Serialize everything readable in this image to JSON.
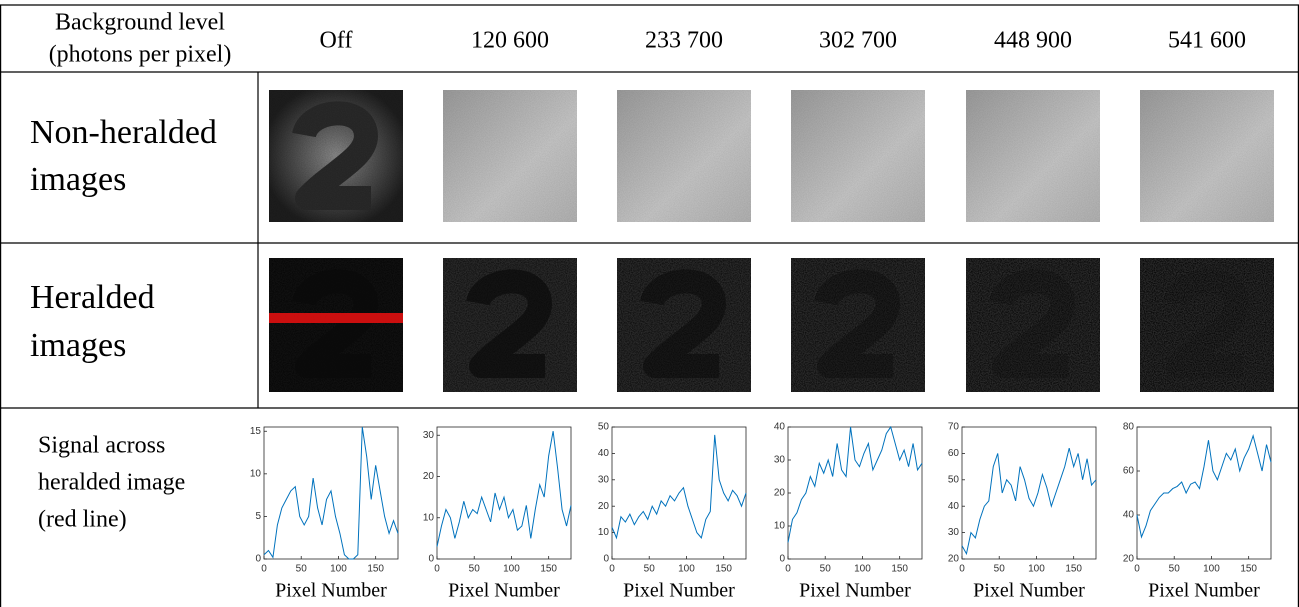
{
  "header": {
    "corner_label": [
      "Background level",
      "(photons per pixel)"
    ],
    "columns": [
      "Off",
      "120 600",
      "233 700",
      "302 700",
      "448 900",
      "541 600"
    ]
  },
  "rows": [
    {
      "label": [
        "Non-heralded",
        "images"
      ]
    },
    {
      "label": [
        "Heralded",
        "images"
      ]
    },
    {
      "label": [
        "Signal across",
        "heralded image",
        "(red line)"
      ]
    }
  ],
  "chart_data": [
    {
      "type": "line",
      "x_label": "Pixel Number",
      "color": "#0072bd",
      "xlim": [
        0,
        180
      ],
      "xticks": [
        0,
        50,
        100,
        150
      ],
      "ylim": [
        0,
        15.5
      ],
      "yticks": [
        0,
        5,
        10,
        15
      ],
      "x": [
        0,
        6,
        12,
        18,
        24,
        30,
        36,
        42,
        48,
        54,
        60,
        66,
        72,
        78,
        84,
        90,
        96,
        102,
        108,
        114,
        120,
        126,
        132,
        138,
        144,
        150,
        156,
        162,
        168,
        174,
        180
      ],
      "values": [
        0.5,
        1,
        0.2,
        4,
        6,
        7,
        8,
        8.5,
        5,
        4,
        5,
        9.5,
        6,
        4,
        7,
        8,
        5,
        3,
        0.5,
        0,
        0,
        0.5,
        15.5,
        12,
        7,
        11,
        8,
        5,
        3,
        4.5,
        3
      ]
    },
    {
      "type": "line",
      "x_label": "Pixel Number",
      "color": "#0072bd",
      "xlim": [
        0,
        180
      ],
      "xticks": [
        0,
        50,
        100,
        150
      ],
      "ylim": [
        0,
        32
      ],
      "yticks": [
        0,
        10,
        20,
        30
      ],
      "x": [
        0,
        6,
        12,
        18,
        24,
        30,
        36,
        42,
        48,
        54,
        60,
        66,
        72,
        78,
        84,
        90,
        96,
        102,
        108,
        114,
        120,
        126,
        132,
        138,
        144,
        150,
        156,
        162,
        168,
        174,
        180
      ],
      "values": [
        3,
        8,
        12,
        10,
        5,
        9,
        14,
        10,
        12,
        11,
        15,
        12,
        9,
        16,
        12,
        15,
        10,
        12,
        7,
        8,
        13,
        5,
        12,
        18,
        15,
        25,
        31,
        22,
        12,
        8,
        13
      ]
    },
    {
      "type": "line",
      "x_label": "Pixel Number",
      "color": "#0072bd",
      "xlim": [
        0,
        180
      ],
      "xticks": [
        0,
        50,
        100,
        150
      ],
      "ylim": [
        0,
        50
      ],
      "yticks": [
        0,
        10,
        20,
        30,
        40,
        50
      ],
      "x": [
        0,
        6,
        12,
        18,
        24,
        30,
        36,
        42,
        48,
        54,
        60,
        66,
        72,
        78,
        84,
        90,
        96,
        102,
        108,
        114,
        120,
        126,
        132,
        138,
        144,
        150,
        156,
        162,
        168,
        174,
        180
      ],
      "values": [
        12,
        8,
        16,
        14,
        17,
        13,
        16,
        18,
        15,
        20,
        17,
        22,
        20,
        24,
        22,
        25,
        27,
        20,
        15,
        10,
        8,
        15,
        18,
        47,
        30,
        25,
        22,
        26,
        24,
        20,
        25
      ]
    },
    {
      "type": "line",
      "x_label": "Pixel Number",
      "color": "#0072bd",
      "xlim": [
        0,
        180
      ],
      "xticks": [
        0,
        50,
        100,
        150
      ],
      "ylim": [
        0,
        40
      ],
      "yticks": [
        0,
        10,
        20,
        30,
        40
      ],
      "x": [
        0,
        6,
        12,
        18,
        24,
        30,
        36,
        42,
        48,
        54,
        60,
        66,
        72,
        78,
        84,
        90,
        96,
        102,
        108,
        114,
        120,
        126,
        132,
        138,
        144,
        150,
        156,
        162,
        168,
        174,
        180
      ],
      "values": [
        5,
        12,
        14,
        18,
        20,
        25,
        22,
        29,
        26,
        30,
        25,
        35,
        27,
        25,
        40,
        30,
        28,
        32,
        35,
        27,
        30,
        33,
        38,
        40,
        35,
        30,
        33,
        28,
        35,
        27,
        29
      ]
    },
    {
      "type": "line",
      "x_label": "Pixel Number",
      "color": "#0072bd",
      "xlim": [
        0,
        180
      ],
      "xticks": [
        0,
        50,
        100,
        150
      ],
      "ylim": [
        20,
        70
      ],
      "yticks": [
        20,
        30,
        40,
        50,
        60,
        70
      ],
      "x": [
        0,
        6,
        12,
        18,
        24,
        30,
        36,
        42,
        48,
        54,
        60,
        66,
        72,
        78,
        84,
        90,
        96,
        102,
        108,
        114,
        120,
        126,
        132,
        138,
        144,
        150,
        156,
        162,
        168,
        174,
        180
      ],
      "values": [
        25,
        22,
        30,
        28,
        35,
        40,
        42,
        55,
        60,
        45,
        50,
        48,
        42,
        55,
        50,
        43,
        40,
        45,
        52,
        47,
        40,
        45,
        50,
        55,
        62,
        55,
        60,
        50,
        58,
        48,
        50
      ]
    },
    {
      "type": "line",
      "x_label": "Pixel Number",
      "color": "#0072bd",
      "xlim": [
        0,
        180
      ],
      "xticks": [
        0,
        50,
        100,
        150
      ],
      "ylim": [
        20,
        80
      ],
      "yticks": [
        20,
        40,
        60,
        80
      ],
      "x": [
        0,
        6,
        12,
        18,
        24,
        30,
        36,
        42,
        48,
        54,
        60,
        66,
        72,
        78,
        84,
        90,
        96,
        102,
        108,
        114,
        120,
        126,
        132,
        138,
        144,
        150,
        156,
        162,
        168,
        174,
        180
      ],
      "values": [
        40,
        30,
        35,
        42,
        45,
        48,
        50,
        50,
        52,
        53,
        55,
        50,
        54,
        55,
        52,
        62,
        74,
        60,
        56,
        62,
        68,
        65,
        70,
        60,
        66,
        70,
        76,
        68,
        60,
        72,
        64
      ]
    }
  ]
}
